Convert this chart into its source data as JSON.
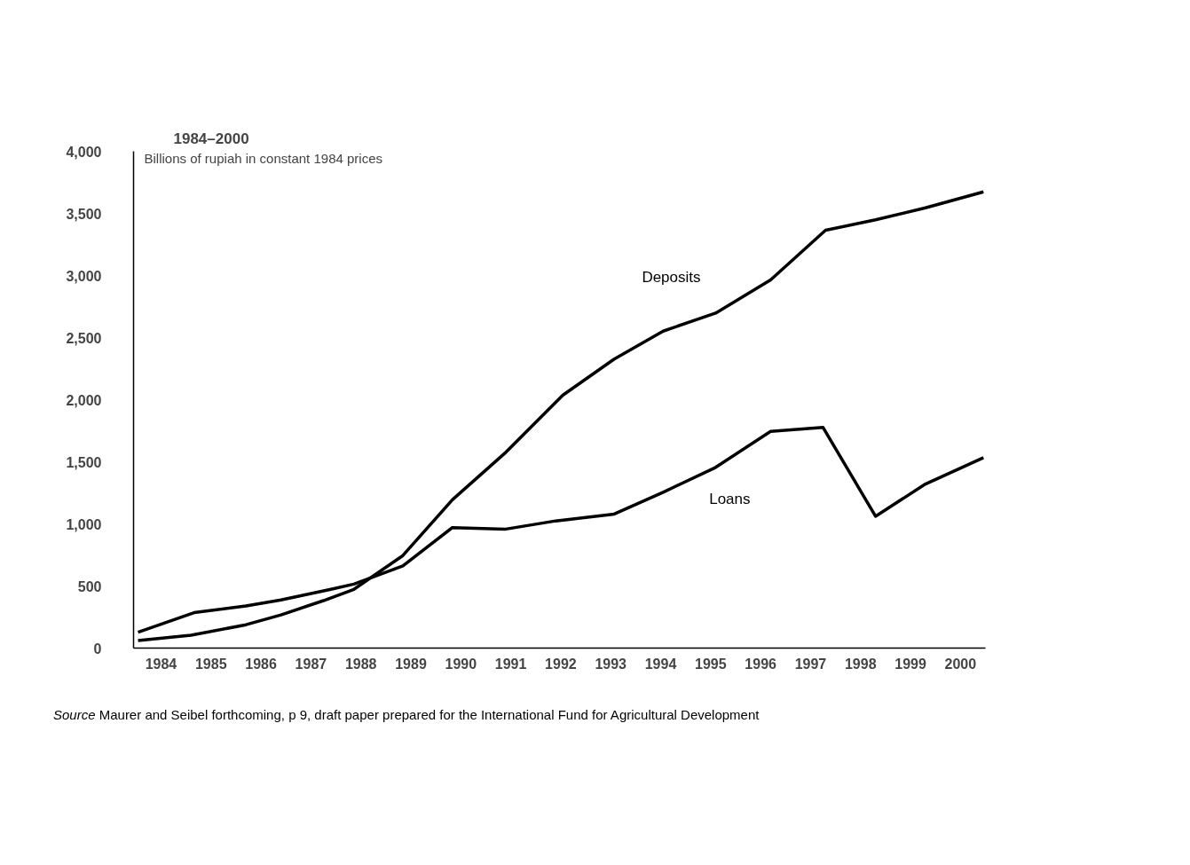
{
  "chart_data": {
    "type": "line",
    "title": "1984–2000",
    "ylabel": "Billions of rupiah in constant 1984 prices",
    "xlim": [
      1983.45,
      2000.5
    ],
    "xticks": [
      1984,
      1985,
      1986,
      1987,
      1988,
      1989,
      1990,
      1991,
      1992,
      1993,
      1994,
      1995,
      1996,
      1997,
      1998,
      1999,
      2000
    ],
    "ylim": [
      0,
      4000
    ],
    "yticks": [
      {
        "value": 0,
        "label": "0"
      },
      {
        "value": 500,
        "label": "500"
      },
      {
        "value": 1000,
        "label": "1,000"
      },
      {
        "value": 1500,
        "label": "1,500"
      },
      {
        "value": 2000,
        "label": "2,000"
      },
      {
        "value": 2500,
        "label": "2,500"
      },
      {
        "value": 3000,
        "label": "3,000"
      },
      {
        "value": 3500,
        "label": "3,500"
      },
      {
        "value": 4000,
        "label": "4,000"
      }
    ],
    "grid": false,
    "marker": "none",
    "line_style": "solid",
    "series": [
      {
        "name": "Deposits",
        "color": "#000000",
        "x": [
          1983.54,
          1984.6,
          1985.7,
          1986.4,
          1987.25,
          1987.86,
          1988.84,
          1989.83,
          1990.9,
          1992.04,
          1993.07,
          1994.05,
          1995.1,
          1996.2,
          1997.3,
          1998.3,
          1999.3,
          2000.46
        ],
        "values": [
          61,
          103,
          188,
          267,
          382,
          473,
          745,
          1194,
          1576,
          2036,
          2327,
          2552,
          2697,
          2964,
          3364,
          3448,
          3545,
          3673
        ]
      },
      {
        "name": "Loans",
        "color": "#000000",
        "x": [
          1983.54,
          1984.66,
          1985.7,
          1986.4,
          1987.4,
          1987.86,
          1988.84,
          1989.83,
          1990.9,
          1991.9,
          1993.07,
          1994.05,
          1995.1,
          1996.2,
          1997.25,
          1998.3,
          1999.3,
          2000.46
        ],
        "values": [
          127,
          285,
          339,
          388,
          473,
          515,
          661,
          970,
          958,
          1024,
          1079,
          1255,
          1455,
          1745,
          1776,
          1061,
          1321,
          1533
        ]
      }
    ],
    "annotations": [
      "Source Maurer and Seibel forthcoming, p 9, draft paper prepared for the International Fund for Agricultural Development"
    ]
  }
}
